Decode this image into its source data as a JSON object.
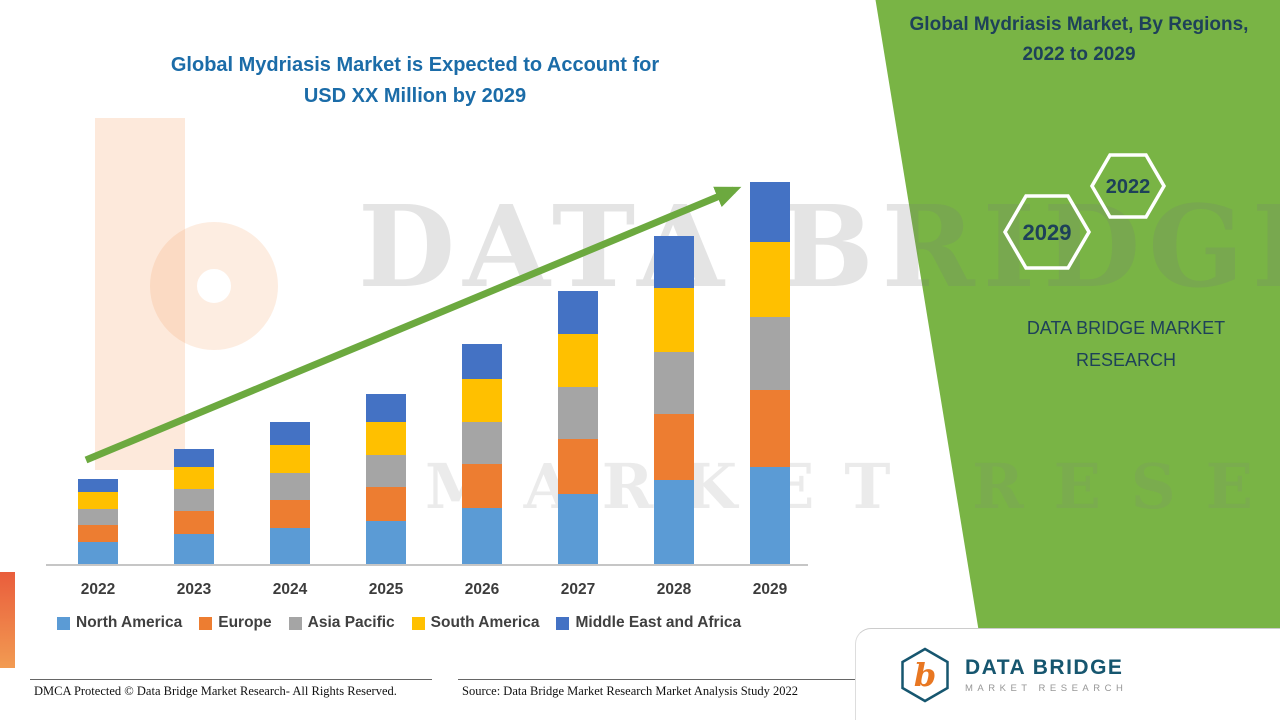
{
  "colors": {
    "panel_green": "#79B445",
    "accent_green": "#6CA93F",
    "title_blue": "#1B6CA8",
    "navy": "#1E4159"
  },
  "header": {
    "title_line1": "Global Mydriasis Market is Expected to Account for",
    "title_line2": "USD XX Million by 2029"
  },
  "right_panel": {
    "title_line1": "Global Mydriasis Market, By Regions,",
    "title_line2": "2022 to 2029",
    "hex_top_label": "2022",
    "hex_bottom_label": "2029",
    "brand_line1": "DATA BRIDGE MARKET",
    "brand_line2": "RESEARCH"
  },
  "watermark": {
    "line1": "DATA BRIDGE",
    "line2": "MARKET RESEARCH"
  },
  "logo": {
    "monogram": "b",
    "name": "DATA BRIDGE",
    "tagline": "MARKET RESEARCH"
  },
  "footer": {
    "dmca": "DMCA Protected © Data Bridge Market Research- All Rights Reserved.",
    "source": "Source: Data Bridge Market Research Market Analysis Study 2022"
  },
  "chart_data": {
    "type": "bar",
    "stacked": true,
    "title": "Global Mydriasis Market is Expected to Account for USD XX Million by 2029",
    "categories": [
      "2022",
      "2023",
      "2024",
      "2025",
      "2026",
      "2027",
      "2028",
      "2029"
    ],
    "series": [
      {
        "name": "North America",
        "color": "#5B9BD5",
        "values": [
          22,
          30,
          36,
          43,
          56,
          70,
          84,
          97
        ]
      },
      {
        "name": "Europe",
        "color": "#ED7D31",
        "values": [
          17,
          23,
          28,
          34,
          44,
          55,
          66,
          77
        ]
      },
      {
        "name": "Asia Pacific",
        "color": "#A5A5A5",
        "values": [
          16,
          22,
          27,
          32,
          42,
          52,
          62,
          73
        ]
      },
      {
        "name": "South America",
        "color": "#FFC000",
        "values": [
          17,
          22,
          28,
          33,
          43,
          53,
          64,
          75
        ]
      },
      {
        "name": "Middle East and Africa",
        "color": "#4472C4",
        "values": [
          13,
          18,
          23,
          28,
          35,
          43,
          52,
          60
        ]
      }
    ],
    "xlabel": "",
    "ylabel": "",
    "ylim": [
      0,
      400
    ],
    "y_axis_visible": false,
    "grid": false,
    "legend_position": "bottom",
    "trend_arrow": true,
    "note": "No numeric axis shown in source figure; segment values are relative heights estimated from the bars."
  }
}
